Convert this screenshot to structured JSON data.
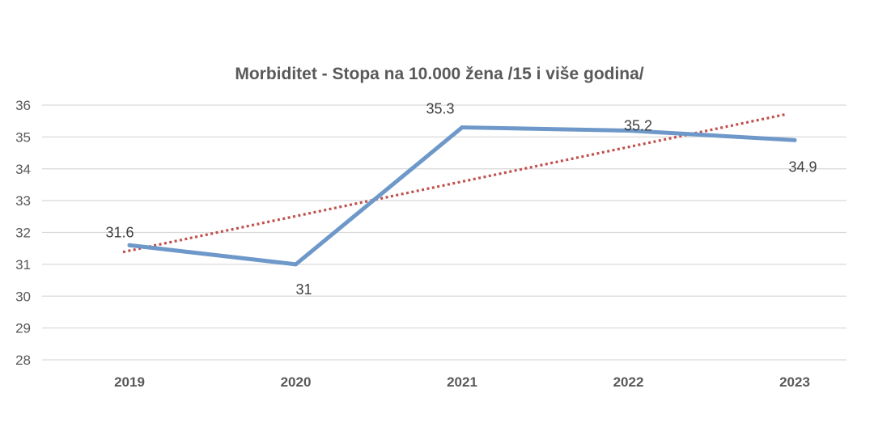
{
  "chart_data": {
    "type": "line",
    "title": "Morbiditet - Stopa na 10.000 žena /15 i više godina/",
    "xlabel": "",
    "ylabel": "",
    "categories": [
      "2019",
      "2020",
      "2021",
      "2022",
      "2023"
    ],
    "series": [
      {
        "values": [
          31.6,
          31,
          35.3,
          35.2,
          34.9
        ],
        "data_labels": [
          "31.6",
          "31",
          "35.3",
          "35.2",
          "34.9"
        ],
        "color": "#6d98c9"
      }
    ],
    "trendline": {
      "type": "linear",
      "color": "#c0504d",
      "style": "dotted"
    },
    "ylim": [
      28,
      36
    ],
    "yticks": [
      "28",
      "29",
      "30",
      "31",
      "32",
      "33",
      "34",
      "35",
      "36"
    ],
    "grid": true,
    "legend": "none"
  }
}
